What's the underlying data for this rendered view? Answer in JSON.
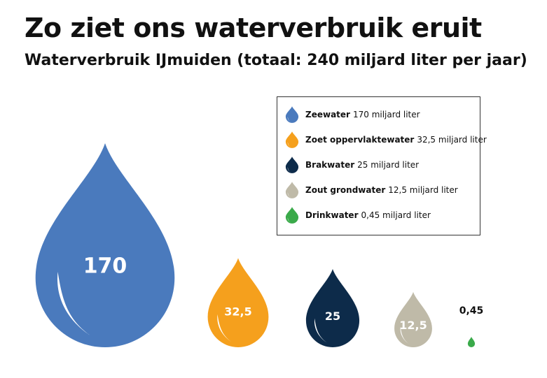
{
  "header": {
    "title": "Zo ziet ons waterverbruik eruit",
    "subtitle": "Waterverbruik IJmuiden (totaal: 240 miljard liter per jaar)"
  },
  "legend": {
    "items": [
      {
        "name": "Zeewater",
        "value_text": "170 miljard liter",
        "color": "#4a7abd"
      },
      {
        "name": "Zoet oppervlaktewater",
        "value_text": "32,5 miljard liter",
        "color": "#f5a01d"
      },
      {
        "name": "Brakwater",
        "value_text": "25 miljard liter",
        "color": "#0d2b4a"
      },
      {
        "name": "Zout grondwater",
        "value_text": "12,5 miljard liter",
        "color": "#bfbaa8"
      },
      {
        "name": "Drinkwater",
        "value_text": "0,45 miljard liter",
        "color": "#3aaa4a"
      }
    ]
  },
  "chart_data": {
    "type": "pictograph",
    "title": "Zo ziet ons waterverbruik eruit",
    "subtitle": "Waterverbruik IJmuiden (totaal: 240 miljard liter per jaar)",
    "unit": "miljard liter",
    "categories": [
      "Zeewater",
      "Zoet oppervlaktewater",
      "Brakwater",
      "Zout grondwater",
      "Drinkwater"
    ],
    "values": [
      170,
      32.5,
      25,
      12.5,
      0.45
    ],
    "labels": [
      "170",
      "32,5",
      "25",
      "12,5",
      "0,45"
    ],
    "colors": [
      "#4a7abd",
      "#f5a01d",
      "#0d2b4a",
      "#bfbaa8",
      "#3aaa4a"
    ],
    "legend_position": "top-right"
  }
}
